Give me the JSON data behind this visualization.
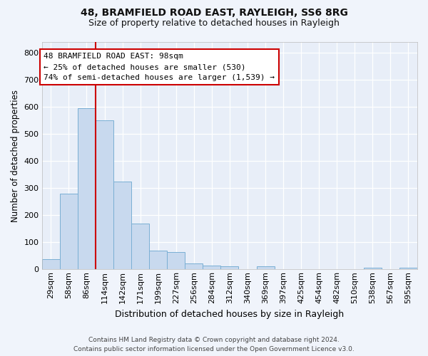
{
  "title": "48, BRAMFIELD ROAD EAST, RAYLEIGH, SS6 8RG",
  "subtitle": "Size of property relative to detached houses in Rayleigh",
  "xlabel": "Distribution of detached houses by size in Rayleigh",
  "ylabel": "Number of detached properties",
  "footer": "Contains HM Land Registry data © Crown copyright and database right 2024.\nContains public sector information licensed under the Open Government Licence v3.0.",
  "categories": [
    "29sqm",
    "58sqm",
    "86sqm",
    "114sqm",
    "142sqm",
    "171sqm",
    "199sqm",
    "227sqm",
    "256sqm",
    "284sqm",
    "312sqm",
    "340sqm",
    "369sqm",
    "397sqm",
    "425sqm",
    "454sqm",
    "482sqm",
    "510sqm",
    "538sqm",
    "567sqm",
    "595sqm"
  ],
  "values": [
    38,
    280,
    595,
    550,
    325,
    170,
    70,
    65,
    22,
    15,
    12,
    0,
    12,
    0,
    0,
    0,
    0,
    0,
    7,
    0,
    7
  ],
  "bar_color": "#c8d9ee",
  "bar_edge_color": "#7aafd4",
  "vline_x_index": 2,
  "marker_label": "48 BRAMFIELD ROAD EAST: 98sqm",
  "annotation_line1": "← 25% of detached houses are smaller (530)",
  "annotation_line2": "74% of semi-detached houses are larger (1,539) →",
  "annotation_box_facecolor": "#ffffff",
  "annotation_box_edgecolor": "#cc0000",
  "vline_color": "#cc0000",
  "background_color": "#f0f4fb",
  "plot_bg_color": "#e8eef8",
  "grid_color": "#ffffff",
  "ylim": [
    0,
    840
  ],
  "yticks": [
    0,
    100,
    200,
    300,
    400,
    500,
    600,
    700,
    800
  ],
  "title_fontsize": 10,
  "subtitle_fontsize": 9,
  "xlabel_fontsize": 9,
  "ylabel_fontsize": 8.5,
  "tick_fontsize": 8,
  "footer_fontsize": 6.5,
  "annotation_fontsize": 8
}
